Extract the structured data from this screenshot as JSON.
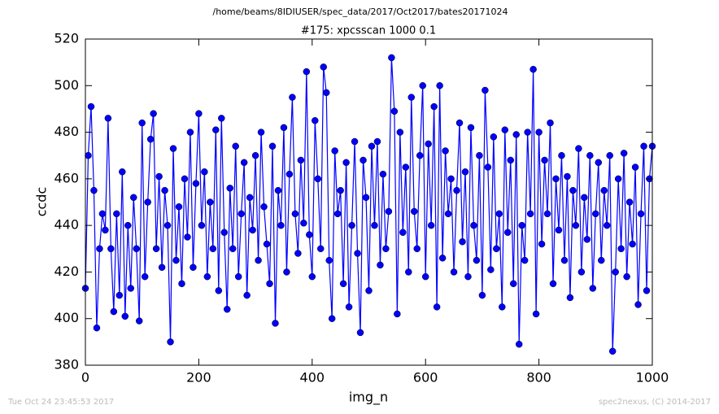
{
  "chart_data": {
    "type": "line",
    "subtitle": "/home/beams/8IDIUSER/spec_data/2017/Oct2017/bates20171024",
    "title": "#175: xpcsscan 1000 0.1",
    "xlabel": "img_n",
    "ylabel": "ccdc",
    "xlim": [
      0,
      1000
    ],
    "xticks": [
      0,
      200,
      400,
      600,
      800,
      1000
    ],
    "ylim": [
      380,
      520
    ],
    "yticks": [
      380,
      400,
      420,
      440,
      460,
      480,
      500,
      520
    ],
    "color": "#0000ff",
    "marker": "o",
    "x": [
      0,
      5,
      10,
      15,
      20,
      25,
      30,
      35,
      40,
      45,
      50,
      55,
      60,
      65,
      70,
      75,
      80,
      85,
      90,
      95,
      100,
      105,
      110,
      115,
      120,
      125,
      130,
      135,
      140,
      145,
      150,
      155,
      160,
      165,
      170,
      175,
      180,
      185,
      190,
      195,
      200,
      205,
      210,
      215,
      220,
      225,
      230,
      235,
      240,
      245,
      250,
      255,
      260,
      265,
      270,
      275,
      280,
      285,
      290,
      295,
      300,
      305,
      310,
      315,
      320,
      325,
      330,
      335,
      340,
      345,
      350,
      355,
      360,
      365,
      370,
      375,
      380,
      385,
      390,
      395,
      400,
      405,
      410,
      415,
      420,
      425,
      430,
      435,
      440,
      445,
      450,
      455,
      460,
      465,
      470,
      475,
      480,
      485,
      490,
      495,
      500,
      505,
      510,
      515,
      520,
      525,
      530,
      535,
      540,
      545,
      550,
      555,
      560,
      565,
      570,
      575,
      580,
      585,
      590,
      595,
      600,
      605,
      610,
      615,
      620,
      625,
      630,
      635,
      640,
      645,
      650,
      655,
      660,
      665,
      670,
      675,
      680,
      685,
      690,
      695,
      700,
      705,
      710,
      715,
      720,
      725,
      730,
      735,
      740,
      745,
      750,
      755,
      760,
      765,
      770,
      775,
      780,
      785,
      790,
      795,
      800,
      805,
      810,
      815,
      820,
      825,
      830,
      835,
      840,
      845,
      850,
      855,
      860,
      865,
      870,
      875,
      880,
      885,
      890,
      895,
      900,
      905,
      910,
      915,
      920,
      925,
      930,
      935,
      940,
      945,
      950,
      955,
      960,
      965,
      970,
      975,
      980,
      985,
      990,
      995,
      1000
    ],
    "values": [
      413,
      470,
      491,
      455,
      396,
      430,
      445,
      438,
      486,
      430,
      403,
      445,
      410,
      463,
      401,
      440,
      413,
      452,
      430,
      399,
      484,
      418,
      450,
      477,
      488,
      430,
      461,
      422,
      455,
      440,
      390,
      473,
      425,
      448,
      415,
      460,
      435,
      480,
      422,
      458,
      488,
      440,
      463,
      418,
      450,
      430,
      481,
      412,
      486,
      437,
      404,
      456,
      430,
      474,
      418,
      445,
      467,
      410,
      452,
      438,
      470,
      425,
      480,
      448,
      432,
      415,
      474,
      398,
      455,
      440,
      482,
      420,
      462,
      495,
      445,
      428,
      468,
      441,
      506,
      436,
      418,
      485,
      460,
      430,
      508,
      497,
      425,
      400,
      472,
      445,
      455,
      415,
      467,
      405,
      440,
      476,
      428,
      394,
      468,
      452,
      412,
      474,
      440,
      476,
      423,
      462,
      430,
      446,
      512,
      489,
      402,
      480,
      437,
      465,
      420,
      495,
      446,
      430,
      470,
      500,
      418,
      475,
      440,
      491,
      405,
      500,
      426,
      472,
      445,
      460,
      420,
      455,
      484,
      433,
      463,
      418,
      482,
      440,
      425,
      470,
      410,
      498,
      465,
      421,
      478,
      430,
      445,
      405,
      481,
      437,
      468,
      415,
      479,
      389,
      440,
      425,
      480,
      445,
      507,
      402,
      480,
      432,
      468,
      445,
      484,
      415,
      460,
      438,
      470,
      425,
      461,
      409,
      455,
      440,
      473,
      420,
      452,
      434,
      470,
      413,
      445,
      467,
      425,
      455,
      440,
      470,
      386,
      420,
      460,
      430,
      471,
      418,
      450,
      432,
      465,
      406,
      445,
      474,
      412,
      460,
      474
    ]
  },
  "footer": {
    "left": "Tue Oct 24 23:45:53 2017",
    "right": "spec2nexus, (C) 2014-2017"
  }
}
